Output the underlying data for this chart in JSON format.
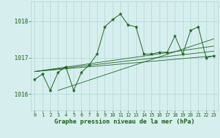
{
  "title": "Graphe pression niveau de la mer (hPa)",
  "yticks": [
    1016,
    1017,
    1018
  ],
  "ylim": [
    1015.55,
    1018.55
  ],
  "xlim": [
    -0.5,
    23.5
  ],
  "background_color": "#d6efee",
  "grid_color": "#aed4d0",
  "line_color": "#1a5c1a",
  "marker_color": "#1a5c1a",
  "main_data": [
    1016.4,
    1016.55,
    1016.1,
    1016.6,
    1016.75,
    1016.1,
    1016.6,
    1016.8,
    1017.1,
    1017.85,
    1018.05,
    1018.2,
    1017.9,
    1017.85,
    1017.1,
    1017.1,
    1017.15,
    1017.15,
    1017.6,
    1017.1,
    1017.75,
    1017.85,
    1017.0,
    1017.05
  ],
  "trend_lines": [
    [
      [
        0,
        1016.62
      ],
      [
        23,
        1017.05
      ]
    ],
    [
      [
        0,
        1016.62
      ],
      [
        23,
        1017.18
      ]
    ],
    [
      [
        0,
        1016.62
      ],
      [
        23,
        1017.32
      ]
    ],
    [
      [
        3,
        1016.1
      ],
      [
        23,
        1017.52
      ]
    ]
  ],
  "xtick_labels": [
    "0",
    "1",
    "2",
    "3",
    "4",
    "5",
    "6",
    "7",
    "8",
    "9",
    "10",
    "11",
    "12",
    "13",
    "14",
    "15",
    "16",
    "17",
    "18",
    "19",
    "20",
    "21",
    "22",
    "23"
  ],
  "title_fontsize": 6.5,
  "ytick_fontsize": 6.0,
  "xtick_fontsize": 5.0
}
